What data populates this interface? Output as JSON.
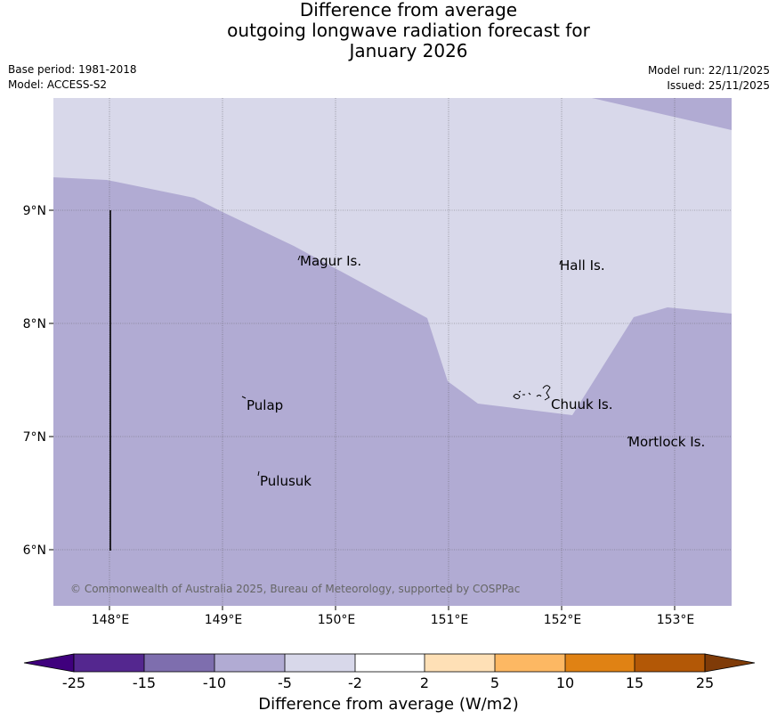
{
  "header": {
    "title_lines": [
      "Difference from average",
      "outgoing longwave radiation forecast for",
      "January 2026"
    ],
    "base_period": "Base period: 1981-2018",
    "model": "Model: ACCESS-S2",
    "model_run": "Model run: 22/11/2025",
    "issued": "Issued: 25/11/2025"
  },
  "map": {
    "lon_labels": [
      "148°E",
      "149°E",
      "150°E",
      "151°E",
      "152°E",
      "153°E"
    ],
    "lat_labels": [
      "9°N",
      "8°N",
      "7°N",
      "6°N"
    ],
    "places": [
      {
        "name": "Magur Is."
      },
      {
        "name": "Hall Is."
      },
      {
        "name": "Pulap"
      },
      {
        "name": "Chuuk Is."
      },
      {
        "name": "Mortlock Is."
      },
      {
        "name": "Pulusuk"
      }
    ],
    "copyright": "© Commonwealth of Australia 2025, Bureau of Meteorology, supported by COSPPac",
    "colors": {
      "light_region": "#d8d8ea",
      "mid_region": "#b1abd3"
    }
  },
  "colorbar": {
    "ticks": [
      "-25",
      "-15",
      "-10",
      "-5",
      "-2",
      "2",
      "5",
      "10",
      "15",
      "25"
    ],
    "colors": [
      "#3f007d",
      "#54278f",
      "#7e6eae",
      "#b1abd3",
      "#d8d8ea",
      "#ffffff",
      "#fee0b6",
      "#fdb863",
      "#e08214",
      "#b35806",
      "#7f3b08"
    ],
    "label": "Difference from average (W/m2)"
  }
}
